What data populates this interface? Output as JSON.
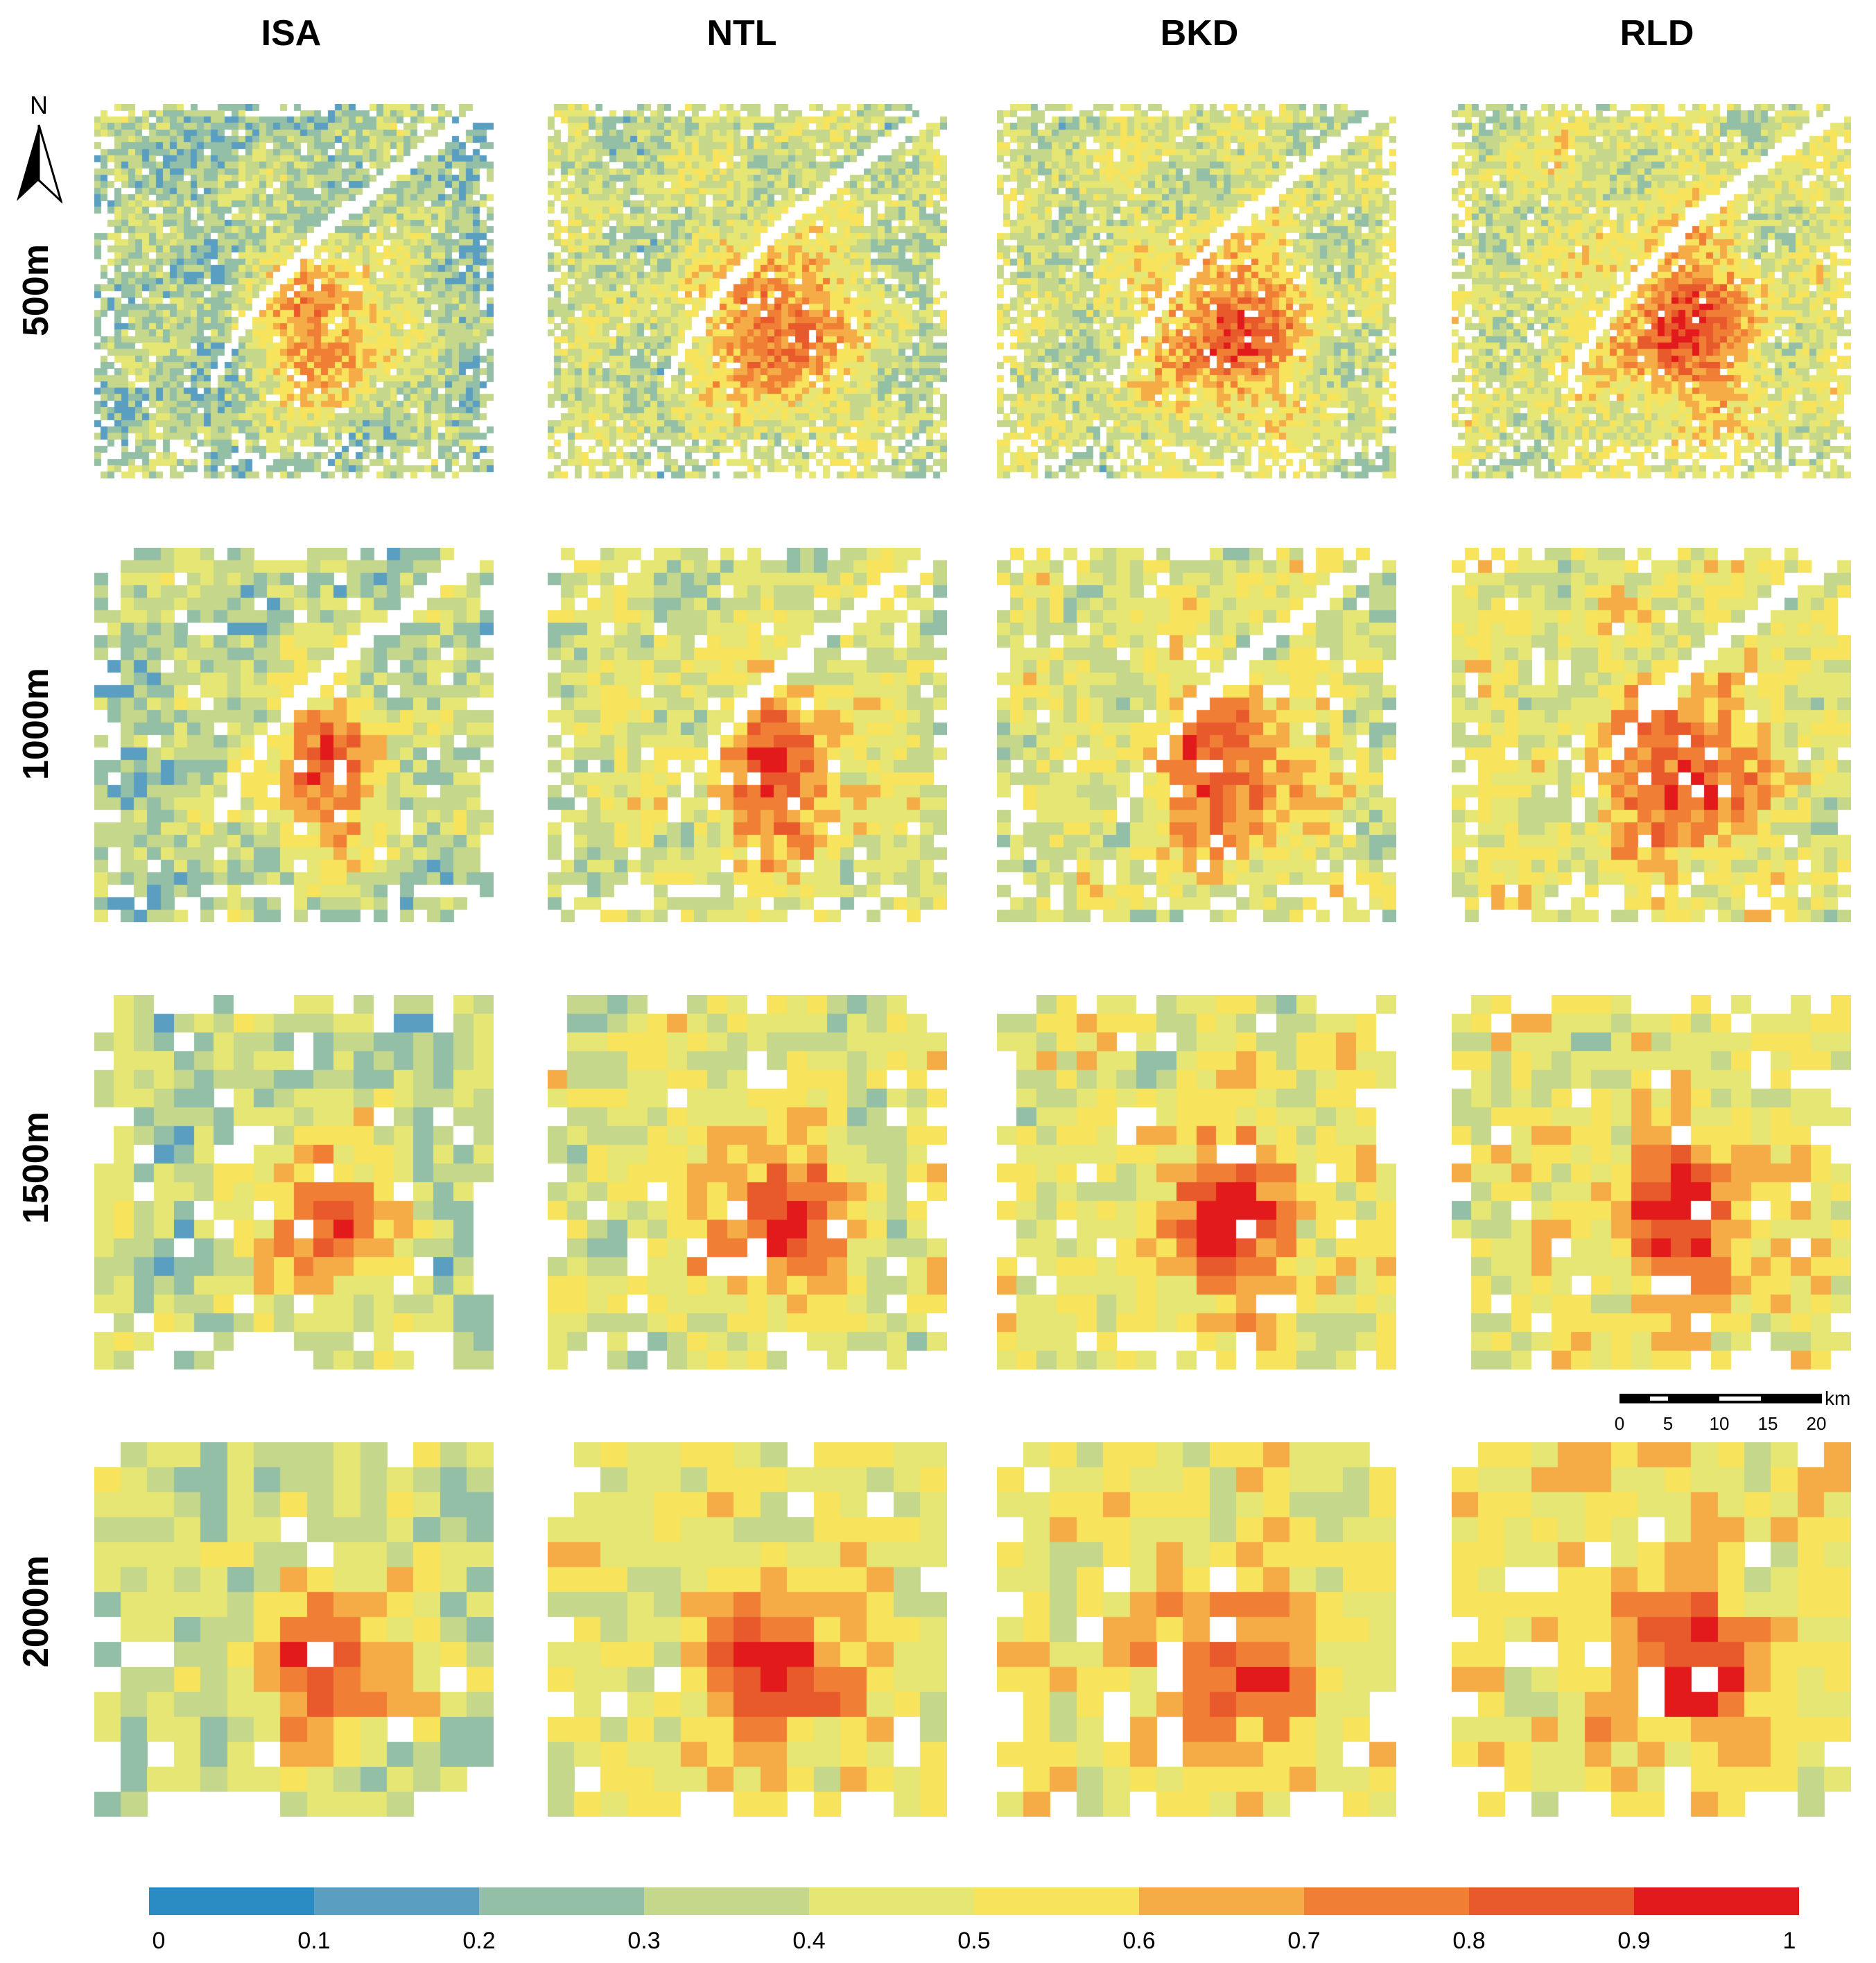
{
  "columns": [
    "ISA",
    "NTL",
    "BKD",
    "RLD"
  ],
  "rows": [
    "500m",
    "1000m",
    "1500m",
    "2000m"
  ],
  "north_arrow": {
    "label": "N"
  },
  "scale_bar": {
    "unit": "km",
    "ticks": [
      "0",
      "5",
      "10",
      "15",
      "20"
    ]
  },
  "legend": {
    "labels": [
      "0",
      "0.1",
      "0.2",
      "0.3",
      "0.4",
      "0.5",
      "0.6",
      "0.7",
      "0.8",
      "0.9",
      "1"
    ],
    "colors": [
      "#2b8cc4",
      "#5a9ec2",
      "#92bfa6",
      "#c4d78a",
      "#e6e674",
      "#f7e35c",
      "#f6ac46",
      "#f07e34",
      "#e85a2c",
      "#e31a1c"
    ]
  }
}
